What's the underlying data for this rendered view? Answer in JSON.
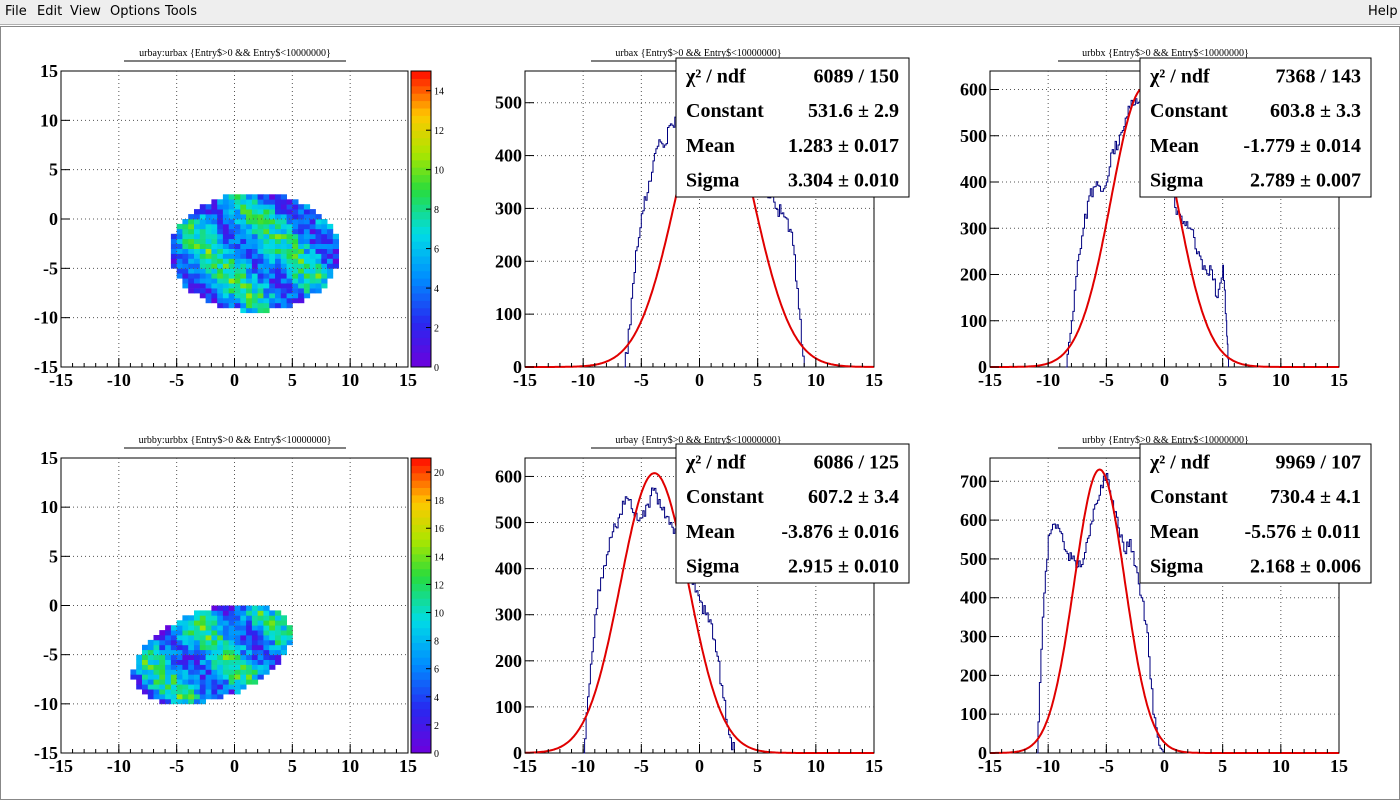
{
  "menu": {
    "items": [
      {
        "id": "file",
        "label": "File"
      },
      {
        "id": "edit",
        "label": "Edit"
      },
      {
        "id": "view",
        "label": "View"
      },
      {
        "id": "options",
        "label": "Options"
      },
      {
        "id": "tools",
        "label": "Tools"
      }
    ],
    "help": "Help"
  },
  "chart_data": [
    {
      "id": "p1",
      "type": "heatmap",
      "title": "urbay:urbax {Entry$>0 && Entry$<10000000}",
      "xlim": [
        -15,
        15
      ],
      "ylim": [
        -15,
        15
      ],
      "xticks": [
        -15,
        -10,
        -5,
        0,
        5,
        10,
        15
      ],
      "yticks": [
        -15,
        -10,
        -5,
        0,
        5,
        10,
        15
      ],
      "zlim": [
        0,
        15
      ],
      "zticks": [
        0,
        2,
        4,
        6,
        8,
        10,
        12,
        14
      ],
      "ellipse": {
        "cx": 1.5,
        "cy": -3.6,
        "rx": 7.3,
        "ry": 6.0
      },
      "grid": true
    },
    {
      "id": "p2",
      "type": "line",
      "title": "urbax {Entry$>0 && Entry$<10000000}",
      "xlim": [
        -15,
        15
      ],
      "ylim": [
        0,
        560
      ],
      "xticks": [
        -15,
        -10,
        -5,
        0,
        5,
        10,
        15
      ],
      "yticks": [
        0,
        100,
        200,
        300,
        400,
        500
      ],
      "hist": [
        [
          -6.5,
          0
        ],
        [
          -6,
          80
        ],
        [
          -5.5,
          220
        ],
        [
          -5,
          290
        ],
        [
          -4.5,
          330
        ],
        [
          -4,
          390
        ],
        [
          -3.5,
          430
        ],
        [
          -3,
          420
        ],
        [
          -2.5,
          460
        ],
        [
          -2,
          470
        ],
        [
          -1.5,
          480
        ],
        [
          -1,
          490
        ],
        [
          0,
          500
        ],
        [
          1,
          510
        ],
        [
          2,
          500
        ],
        [
          3,
          480
        ],
        [
          3.5,
          450
        ],
        [
          4,
          420
        ],
        [
          4.5,
          400
        ],
        [
          5,
          350
        ],
        [
          5.5,
          330
        ],
        [
          6,
          320
        ],
        [
          6.5,
          300
        ],
        [
          7,
          290
        ],
        [
          7.5,
          280
        ],
        [
          8,
          230
        ],
        [
          8.5,
          110
        ],
        [
          9,
          0
        ]
      ],
      "fit": {
        "constant": 531.6,
        "mean": 1.283,
        "sigma": 3.304
      },
      "stats": {
        "chi_label": "χ² / ndf",
        "chi_value": "6089 / 150",
        "rows": [
          {
            "label": "Constant",
            "value": "531.6 ± 2.9"
          },
          {
            "label": "Mean",
            "value": "1.283 ± 0.017"
          },
          {
            "label": "Sigma",
            "value": "3.304 ± 0.010"
          }
        ]
      },
      "grid": true
    },
    {
      "id": "p3",
      "type": "line",
      "title": "urbbx {Entry$>0 && Entry$<10000000}",
      "xlim": [
        -15,
        15
      ],
      "ylim": [
        0,
        640
      ],
      "xticks": [
        -15,
        -10,
        -5,
        0,
        5,
        10,
        15
      ],
      "yticks": [
        0,
        100,
        200,
        300,
        400,
        500,
        600
      ],
      "hist": [
        [
          -8.5,
          0
        ],
        [
          -8,
          100
        ],
        [
          -7.5,
          230
        ],
        [
          -7,
          300
        ],
        [
          -6.5,
          370
        ],
        [
          -6,
          390
        ],
        [
          -5.5,
          380
        ],
        [
          -5,
          400
        ],
        [
          -4.5,
          470
        ],
        [
          -4,
          480
        ],
        [
          -3.5,
          520
        ],
        [
          -3,
          560
        ],
        [
          -2.5,
          580
        ],
        [
          -2,
          590
        ],
        [
          -1.5,
          560
        ],
        [
          -1,
          520
        ],
        [
          -0.5,
          500
        ],
        [
          0,
          480
        ],
        [
          0.5,
          400
        ],
        [
          1,
          330
        ],
        [
          1.5,
          310
        ],
        [
          2,
          300
        ],
        [
          2.5,
          280
        ],
        [
          3,
          240
        ],
        [
          3.5,
          210
        ],
        [
          4,
          210
        ],
        [
          4.5,
          150
        ],
        [
          5,
          220
        ],
        [
          5.3,
          100
        ],
        [
          5.5,
          0
        ]
      ],
      "fit": {
        "constant": 603.8,
        "mean": -1.779,
        "sigma": 2.789
      },
      "stats": {
        "chi_label": "χ² / ndf",
        "chi_value": "7368 / 143",
        "rows": [
          {
            "label": "Constant",
            "value": "603.8 ± 3.3"
          },
          {
            "label": "Mean",
            "value": "-1.779 ± 0.014"
          },
          {
            "label": "Sigma",
            "value": "2.789 ± 0.007"
          }
        ]
      },
      "grid": true
    },
    {
      "id": "p4",
      "type": "heatmap",
      "title": "urbby:urbbx {Entry$>0 && Entry$<10000000}",
      "xlim": [
        -15,
        15
      ],
      "ylim": [
        -15,
        15
      ],
      "xticks": [
        -15,
        -10,
        -5,
        0,
        5,
        10,
        15
      ],
      "yticks": [
        -15,
        -10,
        -5,
        0,
        5,
        10,
        15
      ],
      "zlim": [
        0,
        21
      ],
      "zticks": [
        0,
        2,
        4,
        6,
        8,
        10,
        12,
        14,
        16,
        18,
        20
      ],
      "ellipse": {
        "cx": -2.2,
        "cy": -5.2,
        "rx": 7.3,
        "ry": 4.4,
        "rot": 26
      },
      "grid": true
    },
    {
      "id": "p5",
      "type": "line",
      "title": "urbay {Entry$>0 && Entry$<10000000}",
      "xlim": [
        -15,
        15
      ],
      "ylim": [
        0,
        640
      ],
      "xticks": [
        -15,
        -10,
        -5,
        0,
        5,
        10,
        15
      ],
      "yticks": [
        0,
        100,
        200,
        300,
        400,
        500,
        600
      ],
      "hist": [
        [
          -10,
          0
        ],
        [
          -9.5,
          150
        ],
        [
          -9,
          300
        ],
        [
          -8.5,
          380
        ],
        [
          -8,
          430
        ],
        [
          -7.5,
          480
        ],
        [
          -7,
          510
        ],
        [
          -6.5,
          540
        ],
        [
          -6,
          550
        ],
        [
          -5.5,
          520
        ],
        [
          -5,
          510
        ],
        [
          -4.5,
          540
        ],
        [
          -4,
          570
        ],
        [
          -3.5,
          550
        ],
        [
          -3,
          510
        ],
        [
          -2.5,
          500
        ],
        [
          -2,
          480
        ],
        [
          -1.5,
          440
        ],
        [
          -1,
          400
        ],
        [
          -0.5,
          370
        ],
        [
          0,
          330
        ],
        [
          0.5,
          300
        ],
        [
          1,
          280
        ],
        [
          1.5,
          210
        ],
        [
          2,
          120
        ],
        [
          2.5,
          40
        ],
        [
          3,
          0
        ]
      ],
      "fit": {
        "constant": 607.2,
        "mean": -3.876,
        "sigma": 2.915
      },
      "stats": {
        "chi_label": "χ² / ndf",
        "chi_value": "6086 / 125",
        "rows": [
          {
            "label": "Constant",
            "value": "607.2 ± 3.4"
          },
          {
            "label": "Mean",
            "value": "-3.876 ± 0.016"
          },
          {
            "label": "Sigma",
            "value": "2.915 ± 0.010"
          }
        ]
      },
      "grid": true
    },
    {
      "id": "p6",
      "type": "line",
      "title": "urbby {Entry$>0 && Entry$<10000000}",
      "xlim": [
        -15,
        15
      ],
      "ylim": [
        0,
        760
      ],
      "xticks": [
        -15,
        -10,
        -5,
        0,
        5,
        10,
        15
      ],
      "yticks": [
        0,
        100,
        200,
        300,
        400,
        500,
        600,
        700
      ],
      "hist": [
        [
          -11,
          0
        ],
        [
          -10.5,
          350
        ],
        [
          -10,
          560
        ],
        [
          -9.5,
          590
        ],
        [
          -9,
          570
        ],
        [
          -8.5,
          520
        ],
        [
          -8,
          500
        ],
        [
          -7.5,
          480
        ],
        [
          -7,
          500
        ],
        [
          -6.5,
          560
        ],
        [
          -6,
          640
        ],
        [
          -5.5,
          690
        ],
        [
          -5,
          720
        ],
        [
          -4.5,
          650
        ],
        [
          -4,
          580
        ],
        [
          -3.5,
          520
        ],
        [
          -3,
          550
        ],
        [
          -2.5,
          480
        ],
        [
          -2,
          400
        ],
        [
          -1.5,
          310
        ],
        [
          -1,
          100
        ],
        [
          -0.5,
          20
        ],
        [
          0,
          0
        ]
      ],
      "fit": {
        "constant": 730.4,
        "mean": -5.576,
        "sigma": 2.168
      },
      "stats": {
        "chi_label": "χ² / ndf",
        "chi_value": "9969 / 107",
        "rows": [
          {
            "label": "Constant",
            "value": "730.4 ± 4.1"
          },
          {
            "label": "Mean",
            "value": "-5.576 ± 0.011"
          },
          {
            "label": "Sigma",
            "value": "2.168 ± 0.006"
          }
        ]
      },
      "grid": true
    }
  ],
  "colors": {
    "hist": "#000080",
    "fit": "#e00000",
    "grid": "#555555"
  }
}
